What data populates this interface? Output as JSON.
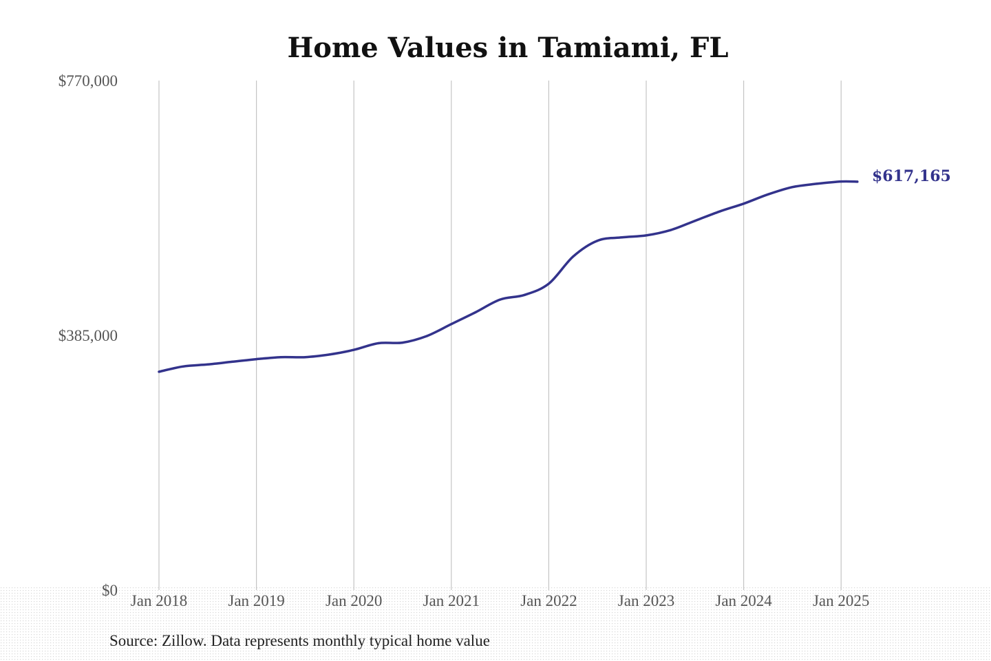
{
  "chart_data": {
    "type": "line",
    "title": "Home Values in Tamiami, FL",
    "xlabel": "",
    "ylabel": "",
    "ylim": [
      0,
      770000
    ],
    "xlim": [
      "2018-01",
      "2025-03"
    ],
    "grid": {
      "vertical": true,
      "horizontal": false
    },
    "x_tick_labels": [
      "Jan 2018",
      "Jan 2019",
      "Jan 2020",
      "Jan 2021",
      "Jan 2022",
      "Jan 2023",
      "Jan 2024",
      "Jan 2025"
    ],
    "y_tick_labels": [
      "$770,000",
      "$385,000",
      "$0"
    ],
    "y_ticks": [
      770000,
      385000,
      0
    ],
    "series": [
      {
        "color": "#33338c",
        "points": [
          {
            "x": "2018-01",
            "y": 330000
          },
          {
            "x": "2018-04",
            "y": 338000
          },
          {
            "x": "2018-07",
            "y": 341000
          },
          {
            "x": "2018-10",
            "y": 345000
          },
          {
            "x": "2019-01",
            "y": 349000
          },
          {
            "x": "2019-04",
            "y": 352000
          },
          {
            "x": "2019-07",
            "y": 352000
          },
          {
            "x": "2019-10",
            "y": 356000
          },
          {
            "x": "2020-01",
            "y": 363000
          },
          {
            "x": "2020-04",
            "y": 373000
          },
          {
            "x": "2020-07",
            "y": 374000
          },
          {
            "x": "2020-10",
            "y": 384000
          },
          {
            "x": "2021-01",
            "y": 402000
          },
          {
            "x": "2021-04",
            "y": 420000
          },
          {
            "x": "2021-07",
            "y": 439000
          },
          {
            "x": "2021-10",
            "y": 446000
          },
          {
            "x": "2022-01",
            "y": 463000
          },
          {
            "x": "2022-04",
            "y": 504000
          },
          {
            "x": "2022-07",
            "y": 528000
          },
          {
            "x": "2022-10",
            "y": 533000
          },
          {
            "x": "2023-01",
            "y": 536000
          },
          {
            "x": "2023-04",
            "y": 544000
          },
          {
            "x": "2023-07",
            "y": 558000
          },
          {
            "x": "2023-10",
            "y": 572000
          },
          {
            "x": "2024-01",
            "y": 584000
          },
          {
            "x": "2024-04",
            "y": 598000
          },
          {
            "x": "2024-07",
            "y": 609000
          },
          {
            "x": "2024-10",
            "y": 614000
          },
          {
            "x": "2025-01",
            "y": 617500
          },
          {
            "x": "2025-03",
            "y": 617165
          }
        ]
      }
    ],
    "annotations": [
      {
        "text": "$617,165",
        "x": "2025-03",
        "y": 617165,
        "color": "#33338c"
      }
    ],
    "source": "Source: Zillow. Data represents monthly typical home value"
  }
}
